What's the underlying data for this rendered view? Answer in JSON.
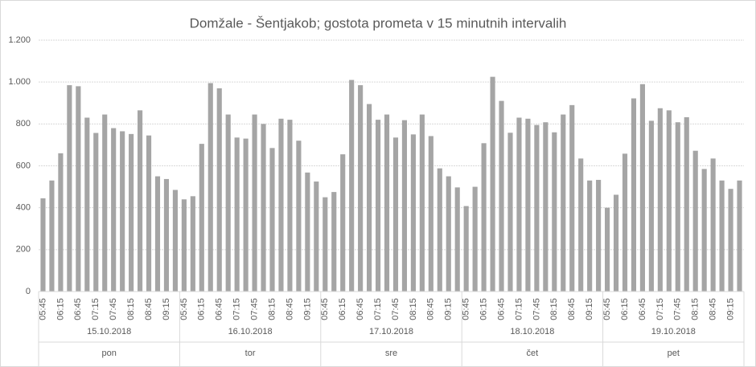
{
  "chart_data": {
    "type": "bar",
    "title": "Domžale - Šentjakob; gostota prometa v 15 minutnih intervalih",
    "categories": [
      "05:45",
      null,
      "06:15",
      null,
      "06:45",
      null,
      "07:15",
      null,
      "07:45",
      null,
      "08:15",
      null,
      "08:45",
      null,
      "09:15",
      null,
      "05:45",
      null,
      "06:15",
      null,
      "06:45",
      null,
      "07:15",
      null,
      "07:45",
      null,
      "08:15",
      null,
      "08:45",
      null,
      "09:15",
      null,
      "05:45",
      null,
      "06:15",
      null,
      "06:45",
      null,
      "07:15",
      null,
      "07:45",
      null,
      "08:15",
      null,
      "08:45",
      null,
      "09:15",
      null,
      "05:45",
      null,
      "06:15",
      null,
      "06:45",
      null,
      "07:15",
      null,
      "07:45",
      null,
      "08:15",
      null,
      "08:45",
      null,
      "09:15",
      null,
      "05:45",
      null,
      "06:15",
      null,
      "06:45",
      null,
      "07:15",
      null,
      "07:45",
      null,
      "08:15",
      null,
      "08:45",
      null,
      "09:15",
      null
    ],
    "groups": [
      {
        "date": "15.10.2018",
        "day": "pon"
      },
      {
        "date": "16.10.2018",
        "day": "tor"
      },
      {
        "date": "17.10.2018",
        "day": "sre"
      },
      {
        "date": "18.10.2018",
        "day": "čet"
      },
      {
        "date": "19.10.2018",
        "day": "pet"
      }
    ],
    "values": [
      445,
      530,
      660,
      985,
      980,
      830,
      757,
      845,
      780,
      765,
      752,
      865,
      745,
      550,
      537,
      485,
      440,
      455,
      705,
      995,
      970,
      845,
      735,
      730,
      845,
      800,
      685,
      825,
      820,
      720,
      568,
      525,
      450,
      475,
      655,
      1010,
      985,
      895,
      820,
      845,
      735,
      818,
      750,
      845,
      742,
      588,
      550,
      497,
      408,
      500,
      708,
      1025,
      910,
      758,
      830,
      825,
      795,
      808,
      760,
      845,
      890,
      635,
      530,
      533,
      400,
      462,
      658,
      922,
      990,
      815,
      875,
      865,
      808,
      832,
      672,
      585,
      635,
      530,
      490,
      530
    ],
    "color": "#a5a5a5",
    "ylim": [
      0,
      1200
    ],
    "yticks": [
      0,
      200,
      400,
      600,
      800,
      {
        "value": 1000,
        "label": "1.000"
      },
      {
        "value": 1200,
        "label": "1.200"
      }
    ],
    "grid": true
  }
}
